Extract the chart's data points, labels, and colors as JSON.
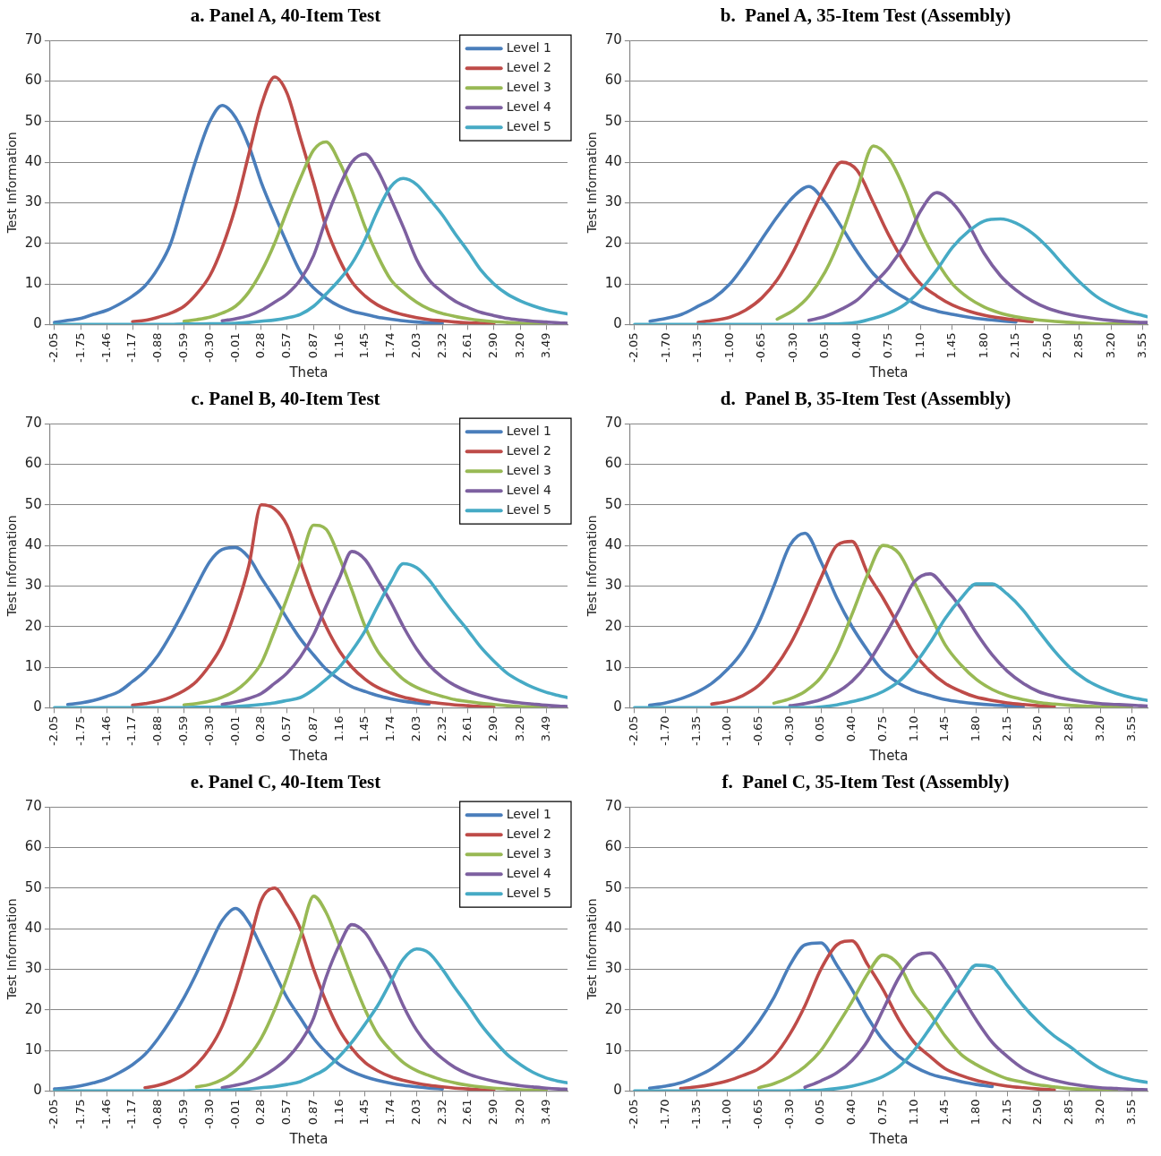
{
  "chart_data": [
    {
      "type": "line",
      "title": "a. Panel A, 40-Item Test",
      "xlabel": "Theta",
      "ylabel": "Test Information",
      "legend": "top right",
      "grid": "y",
      "xlim": [
        -2.1,
        3.73
      ],
      "ylim": [
        0,
        70
      ],
      "yticks": [
        0,
        10,
        20,
        30,
        40,
        50,
        60,
        70
      ],
      "xticks": [
        -2.05,
        -1.75,
        -1.46,
        -1.17,
        -0.88,
        -0.59,
        {
          "value": -0.3,
          "label": "-0.30"
        },
        -0.01,
        0.28,
        0.57,
        0.87,
        1.16,
        1.45,
        1.74,
        2.03,
        2.32,
        2.61,
        {
          "value": 2.9,
          "label": "2.90"
        },
        {
          "value": 3.2,
          "label": "3.20"
        },
        3.49
      ],
      "x": [
        -2.05,
        -1.9,
        -1.75,
        -1.61,
        -1.46,
        -1.32,
        -1.17,
        -1.03,
        -0.88,
        -0.74,
        -0.59,
        -0.45,
        -0.3,
        -0.16,
        -0.01,
        0.14,
        0.28,
        0.43,
        0.57,
        0.72,
        0.87,
        1.01,
        1.16,
        1.3,
        1.45,
        1.59,
        1.74,
        1.88,
        2.03,
        2.17,
        2.32,
        2.46,
        2.61,
        2.75,
        2.9,
        3.05,
        3.2,
        3.34,
        3.49,
        3.63,
        3.73
      ],
      "series": [
        {
          "name": "Level 1",
          "color": "#4a7ebb",
          "values": [
            0.5,
            1,
            1.5,
            2.5,
            3.5,
            5,
            7,
            9.5,
            14,
            20,
            31,
            41,
            50,
            54,
            51,
            44,
            35,
            27,
            20,
            13,
            9,
            6.5,
            4.5,
            3.3,
            2.5,
            1.8,
            1.3,
            0.9,
            0.6,
            0.4,
            0.3,
            null,
            null,
            null,
            null,
            null,
            null,
            null,
            null,
            null,
            null
          ]
        },
        {
          "name": "Level 2",
          "color": "#be4b48",
          "values": [
            null,
            null,
            null,
            null,
            null,
            null,
            0.7,
            1,
            1.8,
            2.8,
            4.5,
            7.5,
            12,
            19,
            29,
            42,
            54,
            61,
            57,
            46,
            35,
            24,
            16,
            10.5,
            7,
            4.8,
            3.3,
            2.4,
            1.7,
            1.2,
            0.9,
            0.6,
            0.4,
            0.3,
            0.2,
            null,
            null,
            null,
            null,
            null,
            null
          ]
        },
        {
          "name": "Level 3",
          "color": "#98b954",
          "values": [
            null,
            null,
            null,
            null,
            null,
            null,
            null,
            null,
            null,
            null,
            0.8,
            1.2,
            1.8,
            2.8,
            4.5,
            8,
            13,
            20,
            28,
            36,
            43,
            45,
            40,
            33,
            24,
            17,
            11,
            8,
            5.5,
            3.8,
            2.7,
            2,
            1.4,
            1,
            0.7,
            0.5,
            0.3,
            0.2,
            0.1,
            null,
            null
          ]
        },
        {
          "name": "Level 4",
          "color": "#7d60a0",
          "values": [
            null,
            null,
            null,
            null,
            null,
            null,
            null,
            null,
            null,
            null,
            null,
            null,
            null,
            0.9,
            1.4,
            2.2,
            3.5,
            5.5,
            7.5,
            11,
            17,
            26,
            34,
            40,
            42,
            38,
            31,
            24,
            16,
            11,
            8,
            5.8,
            4.2,
            3,
            2.2,
            1.5,
            1.1,
            0.8,
            0.6,
            0.4,
            0.3
          ]
        },
        {
          "name": "Level 5",
          "color": "#46aac5",
          "values": [
            0,
            0,
            0,
            0,
            0,
            0,
            0,
            0,
            0,
            0,
            0.1,
            0.1,
            0.2,
            0.2,
            0.3,
            0.5,
            0.8,
            1.1,
            1.6,
            2.5,
            4.5,
            7.5,
            11,
            15,
            21,
            28,
            34,
            36,
            34.5,
            31,
            27,
            22.5,
            18,
            13.5,
            10,
            7.5,
            5.8,
            4.6,
            3.6,
            3,
            2.6
          ]
        }
      ]
    },
    {
      "type": "line",
      "title": "b.  Panel A, 35-Item Test (Assembly)",
      "xlabel": "Theta",
      "ylabel": "Test Information",
      "grid": "y",
      "xlim": [
        -2.1,
        3.6
      ],
      "ylim": [
        0,
        70
      ],
      "yticks": [
        0,
        10,
        20,
        30,
        40,
        50,
        60,
        70
      ],
      "xticks": [
        -2.05,
        {
          "value": -1.7,
          "label": "-1.70"
        },
        -1.35,
        {
          "value": -1,
          "label": "-1.00"
        },
        -0.65,
        {
          "value": -0.3,
          "label": "-0.30"
        },
        0.05,
        {
          "value": 0.4,
          "label": "0.40"
        },
        0.75,
        {
          "value": 1.1,
          "label": "1.10"
        },
        1.45,
        {
          "value": 1.8,
          "label": "1.80"
        },
        2.15,
        {
          "value": 2.5,
          "label": "2.50"
        },
        2.85,
        {
          "value": 3.2,
          "label": "3.20"
        },
        3.55
      ],
      "x": [
        -2.05,
        -1.88,
        -1.7,
        -1.53,
        -1.35,
        -1.18,
        -1,
        -0.83,
        -0.65,
        -0.48,
        -0.3,
        -0.13,
        0.05,
        0.23,
        0.4,
        0.58,
        0.75,
        0.93,
        1.1,
        1.28,
        1.45,
        1.63,
        1.8,
        1.98,
        2.15,
        2.33,
        2.5,
        2.68,
        2.85,
        3.03,
        3.2,
        3.38,
        3.55,
        3.6
      ],
      "series": [
        {
          "color": "#4a7ebb",
          "values": [
            null,
            0.8,
            1.5,
            2.5,
            4.5,
            6.5,
            10,
            15,
            21,
            26.5,
            31.5,
            34,
            30,
            24,
            18,
            12.5,
            9,
            6.5,
            4.5,
            3.3,
            2.5,
            1.8,
            1.3,
            0.9,
            0.6,
            null,
            null,
            null,
            null,
            null,
            null,
            null,
            null,
            null
          ]
        },
        {
          "color": "#be4b48",
          "values": [
            null,
            null,
            null,
            null,
            0.5,
            1,
            1.8,
            3.5,
            6.5,
            11,
            18,
            26,
            34,
            40,
            38,
            30,
            22,
            15,
            10,
            7,
            4.8,
            3.3,
            2.3,
            1.6,
            1.1,
            0.7,
            null,
            null,
            null,
            null,
            null,
            null,
            null,
            null
          ]
        },
        {
          "color": "#98b954",
          "values": [
            null,
            null,
            null,
            null,
            null,
            null,
            null,
            null,
            null,
            1.3,
            3.5,
            7,
            13,
            22,
            33,
            44,
            41,
            33,
            23,
            15.5,
            10,
            6.5,
            4.3,
            2.8,
            1.9,
            1.3,
            0.9,
            0.6,
            0.4,
            0.2,
            0.1,
            0.1,
            0,
            0
          ]
        },
        {
          "color": "#7d60a0",
          "values": [
            null,
            null,
            null,
            null,
            null,
            null,
            null,
            null,
            null,
            null,
            null,
            1,
            2,
            3.8,
            6,
            10,
            14,
            20,
            28,
            32.5,
            30,
            24.5,
            17.5,
            12,
            8.5,
            5.8,
            4,
            2.8,
            2,
            1.4,
            1,
            0.7,
            0.5,
            0.5
          ]
        },
        {
          "color": "#46aac5",
          "values": [
            0,
            0,
            0,
            0,
            0,
            0,
            0,
            0,
            0,
            0,
            0,
            0,
            0.1,
            0.2,
            0.5,
            1.5,
            2.8,
            5,
            8.5,
            13.5,
            19,
            23,
            25.5,
            26,
            25,
            22.5,
            19,
            14.5,
            10.5,
            7,
            4.8,
            3.2,
            2.2,
            1.9
          ]
        }
      ]
    },
    {
      "type": "line",
      "title": "c. Panel B, 40-Item Test",
      "xlabel": "Theta",
      "ylabel": "Test Information",
      "legend": "top right",
      "grid": "y",
      "xlim": [
        -2.1,
        3.73
      ],
      "ylim": [
        0,
        70
      ],
      "yticks": [
        0,
        10,
        20,
        30,
        40,
        50,
        60,
        70
      ],
      "xticks": [
        -2.05,
        -1.75,
        -1.46,
        -1.17,
        -0.88,
        -0.59,
        {
          "value": -0.3,
          "label": "-0.30"
        },
        -0.01,
        0.28,
        0.57,
        0.87,
        1.16,
        1.45,
        1.74,
        2.03,
        2.32,
        2.61,
        {
          "value": 2.9,
          "label": "2.90"
        },
        {
          "value": 3.2,
          "label": "3.20"
        },
        3.49
      ],
      "x": [
        -2.05,
        -1.9,
        -1.75,
        -1.61,
        -1.46,
        -1.32,
        -1.17,
        -1.03,
        -0.88,
        -0.74,
        -0.59,
        -0.45,
        -0.3,
        -0.16,
        -0.01,
        0.14,
        0.28,
        0.43,
        0.57,
        0.72,
        0.87,
        1.01,
        1.16,
        1.3,
        1.45,
        1.59,
        1.74,
        1.88,
        2.03,
        2.17,
        2.32,
        2.46,
        2.61,
        2.75,
        2.9,
        3.05,
        3.2,
        3.34,
        3.49,
        3.63,
        3.73
      ],
      "series": [
        {
          "name": "Level 1",
          "color": "#4a7ebb",
          "values": [
            null,
            0.8,
            1.2,
            1.8,
            2.8,
            4,
            6.5,
            9,
            13,
            18,
            24,
            30,
            36,
            39,
            39.5,
            37,
            32,
            27,
            22,
            17,
            13,
            9.5,
            7,
            5.2,
            4,
            3,
            2.2,
            1.6,
            1.2,
            0.9,
            null,
            null,
            null,
            null,
            null,
            null,
            null,
            null,
            null,
            null,
            null
          ]
        },
        {
          "name": "Level 2",
          "color": "#be4b48",
          "values": [
            null,
            null,
            null,
            null,
            null,
            null,
            0.6,
            1,
            1.6,
            2.6,
            4.2,
            6.5,
            10.5,
            15.5,
            24,
            35,
            50,
            49,
            45,
            36,
            27,
            20,
            14,
            10,
            7,
            5,
            3.6,
            2.6,
            1.9,
            1.4,
            1,
            0.7,
            0.5,
            0.3,
            0.2,
            null,
            null,
            null,
            null,
            null,
            null
          ]
        },
        {
          "name": "Level 3",
          "color": "#98b954",
          "values": [
            null,
            null,
            null,
            null,
            null,
            null,
            null,
            null,
            null,
            null,
            0.7,
            1,
            1.6,
            2.6,
            4.2,
            7,
            11,
            19,
            27,
            36,
            45,
            44,
            37,
            29,
            20,
            14,
            10,
            7,
            5,
            3.8,
            2.8,
            2,
            1.5,
            1.1,
            0.8,
            0.5,
            0.3,
            0.2,
            0.1,
            null,
            null
          ]
        },
        {
          "name": "Level 4",
          "color": "#7d60a0",
          "values": [
            null,
            null,
            null,
            null,
            null,
            null,
            null,
            null,
            null,
            null,
            null,
            null,
            null,
            0.8,
            1.4,
            2.3,
            3.5,
            6,
            8.5,
            12.5,
            18,
            25,
            32,
            38.5,
            36.5,
            31.5,
            26,
            20,
            14.5,
            10.5,
            7.5,
            5.5,
            4,
            3,
            2.2,
            1.6,
            1.2,
            0.9,
            0.6,
            0.4,
            0.3
          ]
        },
        {
          "name": "Level 5",
          "color": "#46aac5",
          "values": [
            0,
            0,
            0,
            0,
            0,
            0,
            0,
            0,
            0,
            0,
            0,
            0.1,
            0.1,
            0.2,
            0.3,
            0.5,
            0.8,
            1.2,
            1.8,
            2.5,
            4.5,
            7,
            10,
            14,
            19,
            25,
            31,
            35.5,
            34.5,
            31.5,
            27,
            23,
            19,
            15,
            11.5,
            8.5,
            6.5,
            5,
            3.8,
            3,
            2.5
          ]
        }
      ]
    },
    {
      "type": "line",
      "title": "d.  Panel B, 35-Item Test (Assembly)",
      "xlabel": "Theta",
      "ylabel": "Test Information",
      "grid": "y",
      "xlim": [
        -2.1,
        3.73
      ],
      "ylim": [
        0,
        70
      ],
      "yticks": [
        0,
        10,
        20,
        30,
        40,
        50,
        60,
        70
      ],
      "xticks": [
        -2.05,
        {
          "value": -1.7,
          "label": "-1.70"
        },
        -1.35,
        {
          "value": -1,
          "label": "-1.00"
        },
        -0.65,
        {
          "value": -0.3,
          "label": "-0.30"
        },
        0.05,
        {
          "value": 0.4,
          "label": "0.40"
        },
        0.75,
        {
          "value": 1.1,
          "label": "1.10"
        },
        1.45,
        {
          "value": 1.8,
          "label": "1.80"
        },
        2.15,
        {
          "value": 2.5,
          "label": "2.50"
        },
        2.85,
        {
          "value": 3.2,
          "label": "3.20"
        },
        3.55
      ],
      "x": [
        -2.05,
        -1.88,
        -1.7,
        -1.53,
        -1.35,
        -1.18,
        -1,
        -0.83,
        -0.65,
        -0.48,
        -0.3,
        -0.13,
        0.05,
        0.23,
        0.4,
        0.58,
        0.75,
        0.93,
        1.1,
        1.28,
        1.45,
        1.63,
        1.8,
        1.98,
        2.15,
        2.33,
        2.5,
        2.68,
        2.85,
        3.03,
        3.2,
        3.38,
        3.55,
        3.73
      ],
      "series": [
        {
          "color": "#4a7ebb",
          "values": [
            null,
            0.6,
            1.2,
            2.2,
            3.8,
            6,
            9.5,
            14,
            21,
            30,
            40,
            43,
            36,
            27,
            20,
            14,
            9,
            6,
            4.2,
            3,
            2,
            1.4,
            1,
            0.7,
            0.5,
            0.3,
            null,
            null,
            null,
            null,
            null,
            null,
            null,
            null
          ]
        },
        {
          "color": "#be4b48",
          "values": [
            null,
            null,
            null,
            null,
            null,
            0.9,
            1.6,
            3,
            5.5,
            9.5,
            15.5,
            23,
            32,
            40,
            41,
            33,
            27,
            20,
            13.5,
            9,
            6,
            4,
            2.6,
            1.8,
            1.2,
            0.8,
            0.5,
            0.3,
            null,
            null,
            null,
            null,
            null,
            null
          ]
        },
        {
          "color": "#98b954",
          "values": [
            null,
            null,
            null,
            null,
            null,
            null,
            null,
            null,
            null,
            1.1,
            2.2,
            4,
            7.5,
            14,
            23,
            33,
            40,
            38,
            31,
            23,
            15.5,
            10.5,
            7,
            4.5,
            3,
            2,
            1.3,
            0.9,
            0.6,
            0.4,
            0.2,
            0.1,
            0.1,
            null
          ]
        },
        {
          "color": "#7d60a0",
          "values": [
            null,
            null,
            null,
            null,
            null,
            null,
            null,
            null,
            null,
            null,
            0.5,
            1,
            2,
            3.8,
            6.5,
            11,
            17,
            24,
            31,
            33,
            29.5,
            24.5,
            18.5,
            13,
            9,
            6,
            4,
            2.8,
            2,
            1.4,
            1,
            0.8,
            0.6,
            0.4
          ]
        },
        {
          "color": "#46aac5",
          "values": [
            0,
            0,
            0,
            0,
            0,
            0,
            0,
            0,
            0,
            0,
            0,
            0,
            0.2,
            0.7,
            1.5,
            2.5,
            4,
            6.5,
            10.5,
            16,
            22,
            27,
            30.5,
            30.5,
            28,
            24,
            19,
            14,
            10,
            7,
            5,
            3.5,
            2.5,
            1.8
          ]
        }
      ]
    },
    {
      "type": "line",
      "title": "e. Panel C, 40-Item Test",
      "xlabel": "Theta",
      "ylabel": "Test Information",
      "legend": "top right",
      "grid": "y",
      "xlim": [
        -2.1,
        3.73
      ],
      "ylim": [
        0,
        70
      ],
      "yticks": [
        0,
        10,
        20,
        30,
        40,
        50,
        60,
        70
      ],
      "xticks": [
        -2.05,
        -1.75,
        -1.46,
        -1.17,
        -0.88,
        -0.59,
        {
          "value": -0.3,
          "label": "-0.30"
        },
        -0.01,
        0.28,
        0.57,
        0.87,
        1.16,
        1.45,
        1.74,
        2.03,
        2.32,
        2.61,
        {
          "value": 2.9,
          "label": "2.90"
        },
        {
          "value": 3.2,
          "label": "3.20"
        },
        3.49
      ],
      "x": [
        -2.05,
        -1.9,
        -1.75,
        -1.61,
        -1.46,
        -1.32,
        -1.17,
        -1.03,
        -0.88,
        -0.74,
        -0.59,
        -0.45,
        -0.3,
        -0.16,
        -0.01,
        0.14,
        0.28,
        0.43,
        0.57,
        0.72,
        0.87,
        1.01,
        1.16,
        1.3,
        1.45,
        1.59,
        1.74,
        1.88,
        2.03,
        2.17,
        2.32,
        2.46,
        2.61,
        2.75,
        2.9,
        3.05,
        3.2,
        3.34,
        3.49,
        3.63,
        3.73
      ],
      "series": [
        {
          "name": "Level 1",
          "color": "#4a7ebb",
          "values": [
            0.5,
            0.8,
            1.3,
            2,
            3,
            4.5,
            6.5,
            9,
            13,
            17.5,
            23,
            29,
            36,
            42,
            45,
            41.5,
            35.5,
            29,
            23,
            18,
            13,
            9.5,
            6.5,
            4.8,
            3.5,
            2.6,
            1.9,
            1.4,
            1,
            0.7,
            0.5,
            null,
            null,
            null,
            null,
            null,
            null,
            null,
            null,
            null,
            null
          ]
        },
        {
          "name": "Level 2",
          "color": "#be4b48",
          "values": [
            null,
            null,
            null,
            null,
            null,
            null,
            null,
            0.8,
            1.4,
            2.4,
            4,
            6.5,
            10.5,
            16,
            25,
            36,
            47,
            50,
            46,
            40,
            30,
            22,
            15,
            10.5,
            7,
            5,
            3.5,
            2.6,
            1.9,
            1.4,
            1,
            0.7,
            0.5,
            0.3,
            0.2,
            null,
            null,
            null,
            null,
            null,
            null
          ]
        },
        {
          "name": "Level 3",
          "color": "#98b954",
          "values": [
            null,
            null,
            null,
            null,
            null,
            null,
            null,
            null,
            null,
            null,
            null,
            1,
            1.6,
            2.8,
            5,
            8.5,
            13,
            20,
            28,
            38,
            48,
            44,
            36,
            28,
            20,
            14,
            10,
            7,
            5,
            3.8,
            2.7,
            2,
            1.4,
            1,
            0.7,
            0.5,
            0.3,
            0.2,
            0.1,
            null,
            null
          ]
        },
        {
          "name": "Level 4",
          "color": "#7d60a0",
          "values": [
            null,
            null,
            null,
            null,
            null,
            null,
            null,
            null,
            null,
            null,
            null,
            null,
            null,
            0.8,
            1.4,
            2.2,
            3.5,
            5.5,
            8,
            12,
            18,
            28,
            36,
            41,
            39,
            34,
            28,
            21,
            15,
            11,
            8,
            5.8,
            4.2,
            3.2,
            2.4,
            1.8,
            1.3,
            1,
            0.7,
            0.5,
            0.4
          ]
        },
        {
          "name": "Level 5",
          "color": "#46aac5",
          "values": [
            0,
            0,
            0,
            0,
            0,
            0,
            0,
            0,
            0,
            0,
            0,
            0.1,
            0.1,
            0.2,
            0.3,
            0.5,
            0.8,
            1.1,
            1.6,
            2.3,
            3.8,
            5.5,
            8.5,
            12,
            16.5,
            21,
            27,
            32.5,
            35,
            34,
            30,
            25.5,
            21,
            16.5,
            12.5,
            9,
            6.5,
            4.6,
            3.2,
            2.4,
            2
          ]
        }
      ]
    },
    {
      "type": "line",
      "title": "f.  Panel C, 35-Item Test (Assembly)",
      "xlabel": "Theta",
      "ylabel": "Test Information",
      "grid": "y",
      "xlim": [
        -2.1,
        3.73
      ],
      "ylim": [
        0,
        70
      ],
      "yticks": [
        0,
        10,
        20,
        30,
        40,
        50,
        60,
        70
      ],
      "xticks": [
        -2.05,
        {
          "value": -1.7,
          "label": "-1.70"
        },
        -1.35,
        {
          "value": -1,
          "label": "-1.00"
        },
        -0.65,
        {
          "value": -0.3,
          "label": "-0.30"
        },
        0.05,
        {
          "value": 0.4,
          "label": "0.40"
        },
        0.75,
        {
          "value": 1.1,
          "label": "1.10"
        },
        1.45,
        {
          "value": 1.8,
          "label": "1.80"
        },
        2.15,
        {
          "value": 2.5,
          "label": "2.50"
        },
        2.85,
        {
          "value": 3.2,
          "label": "3.20"
        },
        3.55
      ],
      "x": [
        -2.05,
        -1.88,
        -1.7,
        -1.53,
        -1.35,
        -1.18,
        -1,
        -0.83,
        -0.65,
        -0.48,
        -0.3,
        -0.13,
        0.05,
        0.23,
        0.4,
        0.58,
        0.75,
        0.93,
        1.1,
        1.28,
        1.45,
        1.63,
        1.8,
        1.98,
        2.15,
        2.33,
        2.5,
        2.68,
        2.85,
        3.03,
        3.2,
        3.38,
        3.55,
        3.73
      ],
      "series": [
        {
          "color": "#4a7ebb",
          "values": [
            null,
            0.7,
            1.2,
            2,
            3.6,
            5.5,
            8.5,
            12,
            17,
            23,
            31,
            36,
            36.5,
            31,
            25,
            18,
            12.5,
            8.5,
            6,
            4.2,
            3.2,
            2.3,
            1.6,
            1.1,
            null,
            null,
            null,
            null,
            null,
            null,
            null,
            null,
            null,
            null
          ]
        },
        {
          "color": "#be4b48",
          "values": [
            null,
            null,
            null,
            0.6,
            1,
            1.6,
            2.5,
            3.8,
            5.5,
            8.5,
            14,
            21,
            30,
            36,
            37,
            31,
            25,
            17.5,
            12,
            8.5,
            5.5,
            3.8,
            2.6,
            1.8,
            1.2,
            0.8,
            0.5,
            0.3,
            null,
            null,
            null,
            null,
            null,
            null
          ]
        },
        {
          "color": "#98b954",
          "values": [
            null,
            null,
            null,
            null,
            null,
            null,
            null,
            null,
            0.8,
            1.8,
            3.5,
            6,
            10,
            16,
            22,
            29,
            33.5,
            31,
            24,
            19,
            13.5,
            9,
            6.5,
            4.5,
            3,
            2.2,
            1.5,
            1,
            0.6,
            0.4,
            0.2,
            0.1,
            null,
            null
          ]
        },
        {
          "color": "#7d60a0",
          "values": [
            null,
            null,
            null,
            null,
            null,
            null,
            null,
            null,
            null,
            null,
            null,
            0.9,
            2.5,
            4.5,
            7.5,
            12.5,
            20,
            28,
            33,
            34,
            30,
            23.5,
            17.5,
            12,
            8.5,
            5.5,
            3.8,
            2.6,
            1.8,
            1.2,
            0.8,
            0.6,
            0.4,
            0.3
          ]
        },
        {
          "color": "#46aac5",
          "values": [
            0,
            0,
            0,
            0,
            0,
            0,
            0,
            0,
            0,
            0,
            0,
            0.1,
            0.2,
            0.6,
            1.2,
            2.2,
            3.6,
            6,
            10,
            15.5,
            21,
            26.5,
            31,
            30.5,
            26,
            21,
            17,
            13.5,
            11,
            8,
            5.5,
            3.8,
            2.8,
            2.1
          ]
        }
      ]
    }
  ]
}
